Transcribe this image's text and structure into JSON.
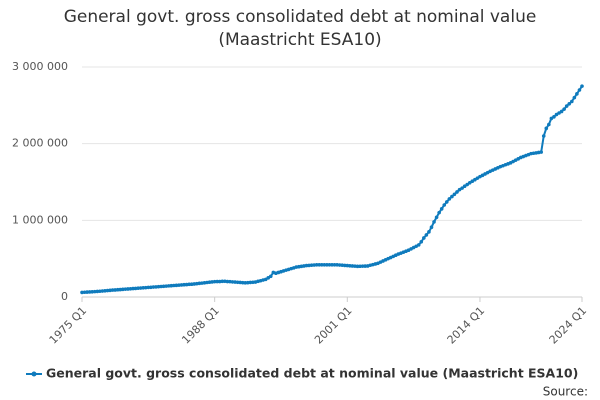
{
  "chart_data": {
    "type": "line",
    "title": "General govt. gross consolidated debt at nominal value (Maastricht ESA10)",
    "source_label": "Source:",
    "categories": [
      "1975 Q1",
      null,
      null,
      null,
      null,
      null,
      null,
      null,
      null,
      null,
      null,
      null,
      null,
      null,
      null,
      null,
      null,
      null,
      null,
      null,
      null,
      null,
      null,
      null,
      null,
      null,
      null,
      null,
      null,
      null,
      null,
      null,
      null,
      null,
      null,
      null,
      null,
      null,
      null,
      null,
      null,
      null,
      null,
      null,
      null,
      null,
      null,
      null,
      null,
      null,
      null,
      null,
      "1988 Q1",
      null,
      null,
      null,
      null,
      null,
      null,
      null,
      null,
      null,
      null,
      null,
      null,
      null,
      null,
      null,
      null,
      null,
      null,
      null,
      null,
      null,
      null,
      null,
      null,
      null,
      null,
      null,
      null,
      null,
      null,
      null,
      null,
      null,
      null,
      null,
      null,
      null,
      null,
      null,
      null,
      null,
      null,
      null,
      null,
      null,
      null,
      null,
      null,
      null,
      null,
      null,
      "2001 Q1",
      null,
      null,
      null,
      null,
      null,
      null,
      null,
      null,
      null,
      null,
      null,
      null,
      null,
      null,
      null,
      null,
      null,
      null,
      null,
      null,
      null,
      null,
      null,
      null,
      null,
      null,
      null,
      null,
      null,
      null,
      null,
      null,
      null,
      null,
      null,
      null,
      null,
      null,
      null,
      null,
      null,
      null,
      null,
      null,
      null,
      null,
      null,
      null,
      null,
      null,
      null,
      "2014 Q1",
      null,
      null,
      null,
      null,
      null,
      null,
      null,
      null,
      null,
      null,
      null,
      null,
      null,
      null,
      null,
      null,
      null,
      null,
      null,
      null,
      null,
      null,
      null,
      null,
      null,
      null,
      null,
      null,
      null,
      null,
      null,
      null,
      null,
      null,
      null,
      null,
      null,
      null,
      null,
      "2024 Q1"
    ],
    "series": [
      {
        "name": "General govt. gross consolidated debt at nominal value (Maastricht ESA10)",
        "color": "#0f7bbd",
        "values": [
          60000,
          62000,
          64000,
          66000,
          68000,
          70000,
          73000,
          75000,
          78000,
          81000,
          84000,
          87000,
          90000,
          92000,
          95000,
          97000,
          100000,
          102000,
          105000,
          107000,
          110000,
          112000,
          115000,
          117000,
          120000,
          122000,
          125000,
          127000,
          130000,
          132000,
          135000,
          137000,
          140000,
          142000,
          145000,
          147000,
          150000,
          152000,
          155000,
          157000,
          160000,
          162000,
          165000,
          167000,
          170000,
          174000,
          178000,
          181000,
          185000,
          189000,
          193000,
          196000,
          200000,
          201000,
          202000,
          204000,
          205000,
          202000,
          200000,
          197000,
          195000,
          192000,
          190000,
          187000,
          185000,
          187000,
          190000,
          192000,
          195000,
          204000,
          212000,
          221000,
          230000,
          250000,
          270000,
          320000,
          310000,
          320000,
          330000,
          340000,
          350000,
          360000,
          370000,
          380000,
          390000,
          395000,
          400000,
          405000,
          410000,
          412000,
          415000,
          417000,
          420000,
          420000,
          420000,
          420000,
          420000,
          420000,
          420000,
          420000,
          420000,
          417000,
          415000,
          412000,
          410000,
          407000,
          405000,
          402000,
          400000,
          401000,
          402000,
          403000,
          405000,
          414000,
          422000,
          431000,
          440000,
          455000,
          470000,
          485000,
          500000,
          515000,
          530000,
          545000,
          560000,
          572000,
          585000,
          597000,
          610000,
          627000,
          645000,
          662000,
          680000,
          720000,
          770000,
          810000,
          850000,
          910000,
          980000,
          1040000,
          1100000,
          1150000,
          1200000,
          1240000,
          1280000,
          1310000,
          1340000,
          1370000,
          1400000,
          1420000,
          1445000,
          1467000,
          1490000,
          1510000,
          1530000,
          1550000,
          1570000,
          1587000,
          1605000,
          1622000,
          1640000,
          1655000,
          1670000,
          1685000,
          1700000,
          1712000,
          1725000,
          1737000,
          1750000,
          1767000,
          1785000,
          1802000,
          1820000,
          1832000,
          1845000,
          1857000,
          1870000,
          1875000,
          1880000,
          1885000,
          1890000,
          2100000,
          2200000,
          2250000,
          2330000,
          2350000,
          2380000,
          2400000,
          2420000,
          2450000,
          2490000,
          2520000,
          2550000,
          2600000,
          2650000,
          2700000,
          2750000
        ]
      }
    ],
    "ylim": [
      0,
      3000000
    ],
    "yticks": [
      0,
      {
        "value": 1000000,
        "label": "1 000 000"
      },
      {
        "value": 2000000,
        "label": "2 000 000"
      },
      {
        "value": 3000000,
        "label": "3 000 000"
      }
    ],
    "grid": true
  }
}
